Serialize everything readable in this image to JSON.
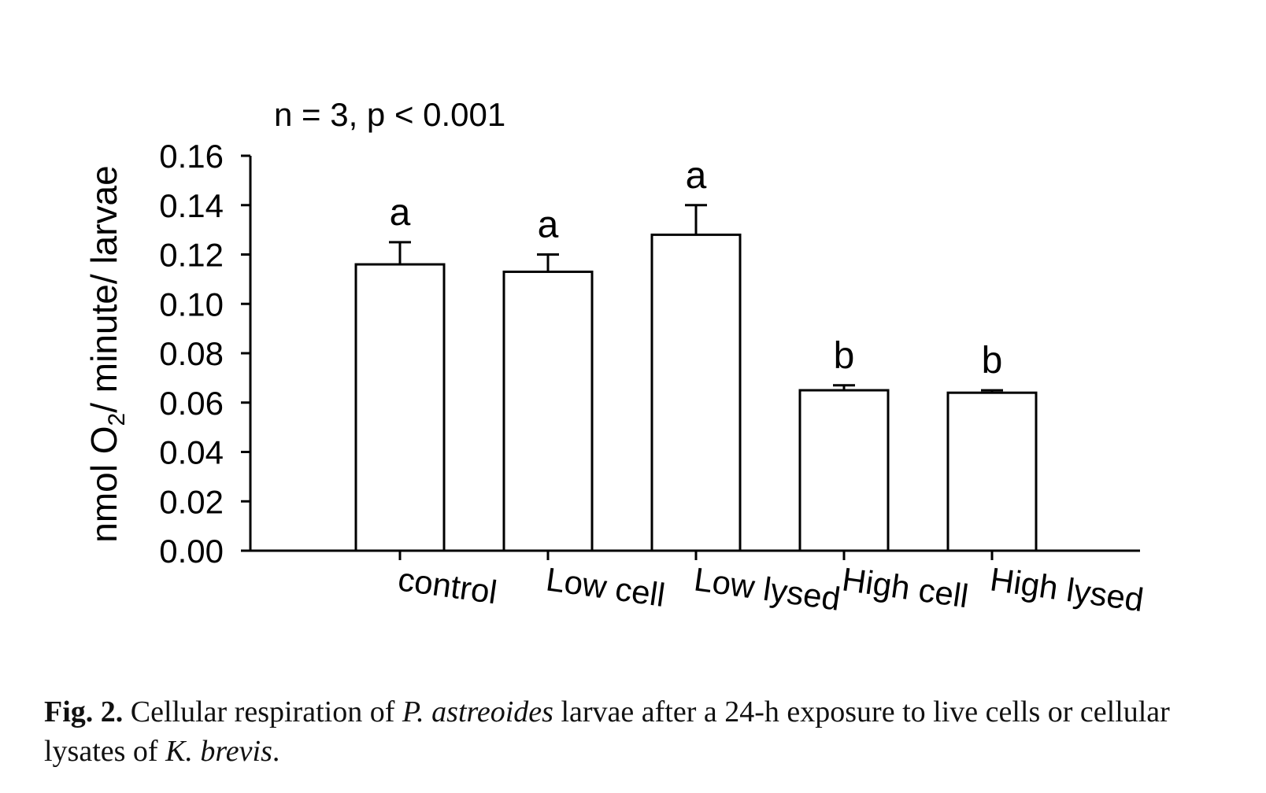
{
  "chart_data": {
    "type": "bar",
    "annotation": "n = 3, p < 0.001",
    "ylabel": {
      "main": "nmol O",
      "sub": "2",
      "rest": "/ minute/ larvae"
    },
    "ylim": [
      0,
      0.16
    ],
    "yticks": [
      "0.00",
      "0.02",
      "0.04",
      "0.06",
      "0.08",
      "0.10",
      "0.12",
      "0.14",
      "0.16"
    ],
    "categories": [
      "control",
      "Low cell",
      "Low lysed",
      "High cell",
      "High lysed"
    ],
    "values": [
      0.116,
      0.113,
      0.128,
      0.065,
      0.064
    ],
    "errors": [
      0.009,
      0.007,
      0.012,
      0.002,
      0.001
    ],
    "group_letters": [
      "a",
      "a",
      "a",
      "b",
      "b"
    ],
    "bar_fill": "#ffffff",
    "bar_stroke": "#000000"
  },
  "caption": {
    "label": "Fig. 2.",
    "t1": " Cellular respiration of ",
    "species1": "P. astreoides",
    "t2": " larvae after a 24-h exposure to live cells or cellular lysates of ",
    "species2": "K. brevis",
    "t3": "."
  }
}
